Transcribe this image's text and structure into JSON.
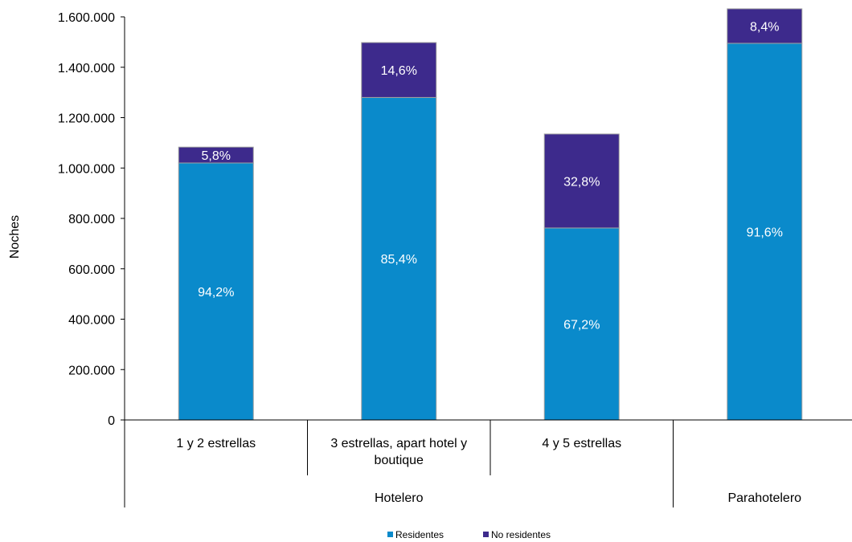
{
  "chart_data": {
    "type": "bar",
    "stacked": true,
    "ylabel": "Noches",
    "ylim": [
      0,
      1600000
    ],
    "yticks": [
      "0",
      "200.000",
      "400.000",
      "600.000",
      "800.000",
      "1.000.000",
      "1.200.000",
      "1.400.000",
      "1.600.000"
    ],
    "categories": [
      "1 y 2 estrellas",
      "3 estrellas, apart hotel y boutique",
      "4 y 5 estrellas",
      ""
    ],
    "groups": [
      {
        "label": "Hotelero",
        "span": [
          0,
          2
        ]
      },
      {
        "label": "Parahotelero",
        "span": [
          3,
          3
        ]
      }
    ],
    "series": [
      {
        "name": "Residentes",
        "color": "#0a8acb",
        "values": [
          1020000,
          1280000,
          762000,
          1495000
        ],
        "labels": [
          "94,2%",
          "85,4%",
          "67,2%",
          "91,6%"
        ]
      },
      {
        "name": "No residentes",
        "color": "#3d2a8c",
        "values": [
          63000,
          218000,
          373000,
          137000
        ],
        "labels": [
          "5,8%",
          "14,6%",
          "32,8%",
          "8,4%"
        ]
      }
    ],
    "legend_position": "bottom",
    "grid": false
  }
}
